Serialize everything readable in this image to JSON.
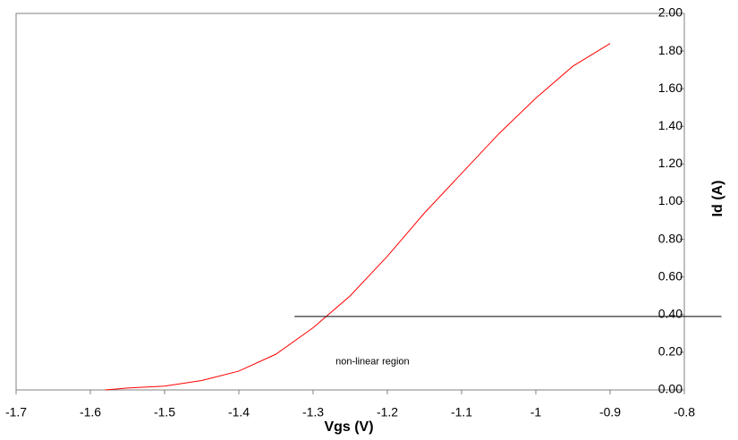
{
  "chart_data": {
    "type": "line",
    "x_label": "Vgs   (V)",
    "y_label": "Id   (A)",
    "x": [
      -1.58,
      -1.55,
      -1.5,
      -1.45,
      -1.4,
      -1.35,
      -1.3,
      -1.25,
      -1.2,
      -1.15,
      -1.1,
      -1.05,
      -1.0,
      -0.95,
      -0.9
    ],
    "series": [
      {
        "name": "Id",
        "color": "#ff0000",
        "values": [
          0,
          0.01,
          0.02,
          0.05,
          0.1,
          0.19,
          0.33,
          0.5,
          0.71,
          0.94,
          1.15,
          1.36,
          1.55,
          1.72,
          1.84
        ]
      }
    ],
    "xlim": [
      -1.7,
      -0.8
    ],
    "xticks": [
      -1.7,
      -1.6,
      -1.5,
      -1.4,
      -1.3,
      -1.2,
      -1.1,
      -1,
      -0.9,
      -0.8
    ],
    "ylim": [
      0,
      2
    ],
    "yticks": [
      {
        "value": 0,
        "label": "0.00"
      },
      {
        "value": 0.2,
        "label": "0.20"
      },
      {
        "value": 0.4,
        "label": "0.40"
      },
      {
        "value": 0.6,
        "label": "0.60"
      },
      {
        "value": 0.8,
        "label": "0.80"
      },
      {
        "value": 1,
        "label": "1.00"
      },
      {
        "value": 1.2,
        "label": "1.20"
      },
      {
        "value": 1.4,
        "label": "1.40"
      },
      {
        "value": 1.6,
        "label": "1.60"
      },
      {
        "value": 1.8,
        "label": "1.80"
      },
      {
        "value": 2,
        "label": "2.00"
      }
    ],
    "grid": false,
    "reference_line": {
      "y": 0.39,
      "x": [
        -1.325,
        -0.75
      ],
      "color": "#000000"
    },
    "annotation": {
      "text": "non-linear region",
      "x": -1.22,
      "y": 0.15
    }
  }
}
